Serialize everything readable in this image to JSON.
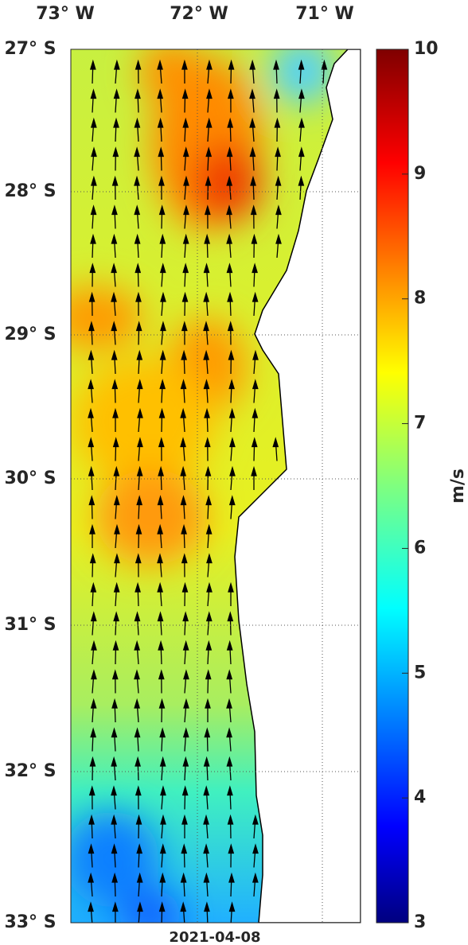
{
  "map": {
    "lon_labels": [
      "73° W",
      "72° W",
      "71° W"
    ],
    "lat_labels": [
      "27° S",
      "28° S",
      "29° S",
      "30° S",
      "31° S",
      "32° S",
      "33° S"
    ],
    "colorbar": {
      "label": "m/s",
      "lim": [
        3,
        10
      ],
      "ticks": [
        3,
        4,
        5,
        6,
        7,
        8,
        9,
        10
      ]
    },
    "date": "2021-04-08"
  }
}
